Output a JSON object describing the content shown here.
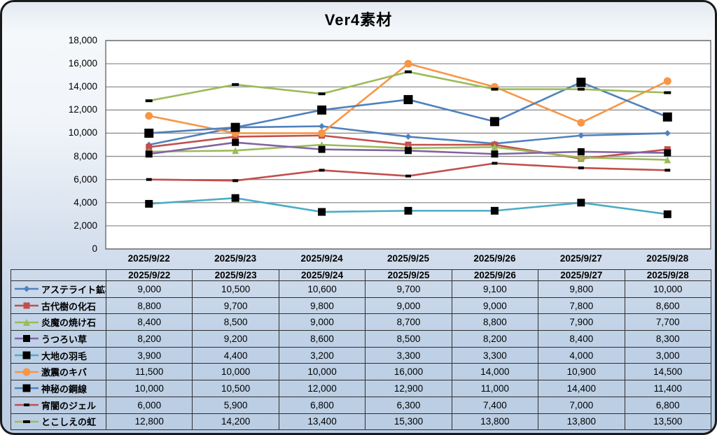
{
  "title": "Ver4素材",
  "colors": {
    "frame_border": "#1a1a1a",
    "bg_top": "#f5f8fb",
    "bg_bottom": "#bacde3",
    "plot_bg": "#ffffff",
    "gridline": "#8f8f8f",
    "plot_border": "#606060",
    "table_border": "#2f2f2f",
    "text": "#000000"
  },
  "chart_data": {
    "type": "line",
    "title": "Ver4素材",
    "categories": [
      "2025/9/22",
      "2025/9/23",
      "2025/9/24",
      "2025/9/25",
      "2025/9/26",
      "2025/9/27",
      "2025/9/28"
    ],
    "ylim": [
      0,
      18000
    ],
    "ytick_step": 2000,
    "grid": true,
    "legend_position": "table-left",
    "series": [
      {
        "name": "アステライト鉱石",
        "color": "#4F81BD",
        "marker": "diamond",
        "marker_color": "#4F81BD",
        "marker_size": 9,
        "values": [
          9000,
          10500,
          10600,
          9700,
          9100,
          9800,
          10000
        ]
      },
      {
        "name": "古代樹の化石",
        "color": "#C0504D",
        "marker": "square",
        "marker_color": "#C0504D",
        "marker_size": 9,
        "values": [
          8800,
          9700,
          9800,
          9000,
          9000,
          7800,
          8600
        ]
      },
      {
        "name": "炎魔の焼け石",
        "color": "#9BBB59",
        "marker": "triangle",
        "marker_color": "#9BBB59",
        "marker_size": 10,
        "values": [
          8400,
          8500,
          9000,
          8700,
          8800,
          7900,
          7700
        ]
      },
      {
        "name": "うつろい草",
        "color": "#8064A2",
        "marker": "square",
        "marker_color": "#000000",
        "marker_size": 10,
        "values": [
          8200,
          9200,
          8600,
          8500,
          8200,
          8400,
          8300
        ]
      },
      {
        "name": "大地の羽毛",
        "color": "#4BACC6",
        "marker": "square",
        "marker_color": "#000000",
        "marker_size": 11,
        "values": [
          3900,
          4400,
          3200,
          3300,
          3300,
          4000,
          3000
        ]
      },
      {
        "name": "激震のキバ",
        "color": "#F79646",
        "marker": "circle",
        "marker_color": "#F79646",
        "marker_size": 11,
        "values": [
          11500,
          10000,
          10000,
          16000,
          14000,
          10900,
          14500
        ]
      },
      {
        "name": "神秘の鋼線",
        "color": "#4F81BD",
        "marker": "square",
        "marker_color": "#000000",
        "marker_size": 13,
        "values": [
          10000,
          10500,
          12000,
          12900,
          11000,
          14400,
          11400
        ]
      },
      {
        "name": "宵闇のジェル",
        "color": "#C0504D",
        "marker": "dash",
        "marker_color": "#000000",
        "marker_size": 8,
        "values": [
          6000,
          5900,
          6800,
          6300,
          7400,
          7000,
          6800
        ]
      },
      {
        "name": "とこしえの虹",
        "color": "#9BBB59",
        "marker": "dash",
        "marker_color": "#000000",
        "marker_size": 10,
        "values": [
          12800,
          14200,
          13400,
          15300,
          13800,
          13800,
          13500
        ]
      }
    ]
  }
}
